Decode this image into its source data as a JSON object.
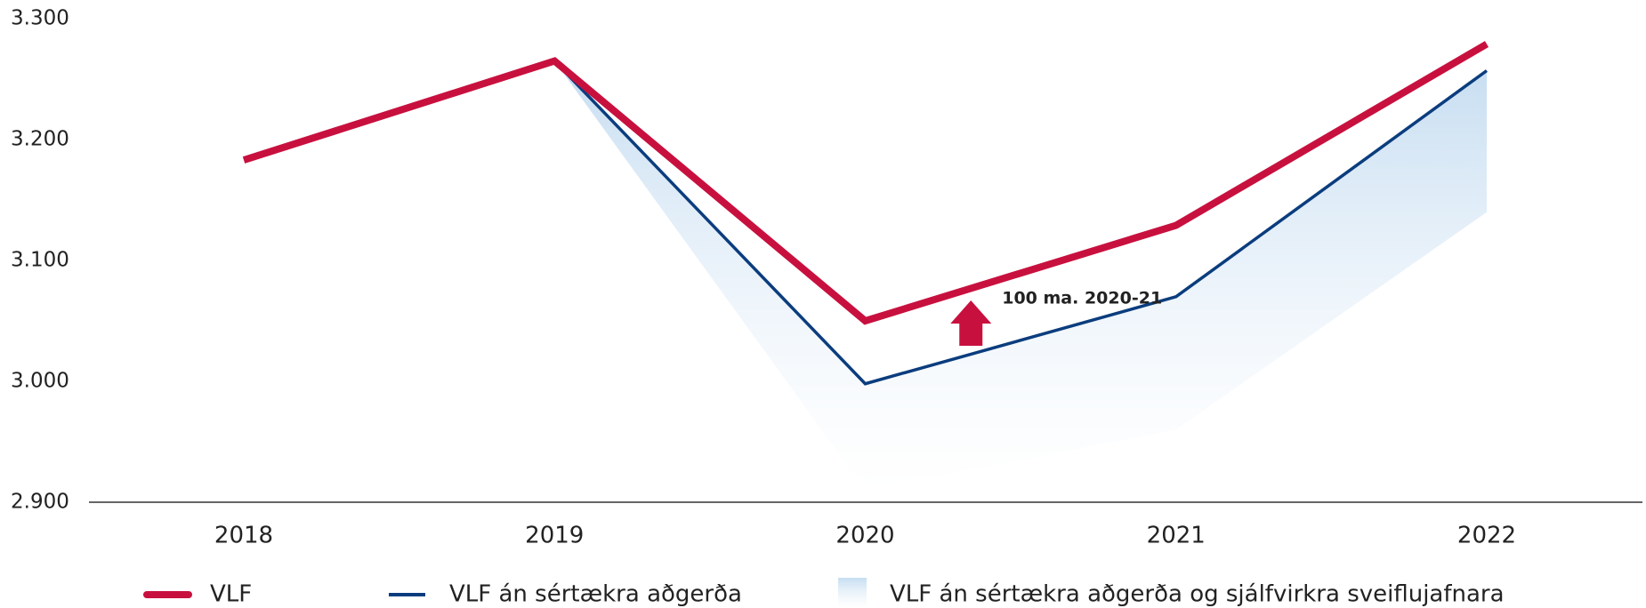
{
  "chart_data": {
    "type": "line",
    "categories": [
      "2018",
      "2019",
      "2020",
      "2021",
      "2022"
    ],
    "series": [
      {
        "name": "VLF",
        "color": "#c8103e",
        "values": [
          3183,
          3265,
          3050,
          3129,
          3279
        ]
      },
      {
        "name": "VLF án sértækra aðgerða",
        "color": "#0b3d7e",
        "values": [
          null,
          3265,
          2998,
          3070,
          3257
        ]
      },
      {
        "name": "VLF án sértækra aðgerða og sjálfvirkra sveiflujafnara",
        "color": "#cfe3f4",
        "values": [
          null,
          3265,
          2910,
          2960,
          3140
        ]
      }
    ],
    "ylim": [
      2900,
      3300
    ],
    "yticks": [
      {
        "value": 2900,
        "label": "2.900"
      },
      {
        "value": 3000,
        "label": "3.000"
      },
      {
        "value": 3100,
        "label": "3.100"
      },
      {
        "value": 3200,
        "label": "3.200"
      },
      {
        "value": 3300,
        "label": "3.300"
      }
    ],
    "annotation": "100 ma. 2020-21"
  }
}
